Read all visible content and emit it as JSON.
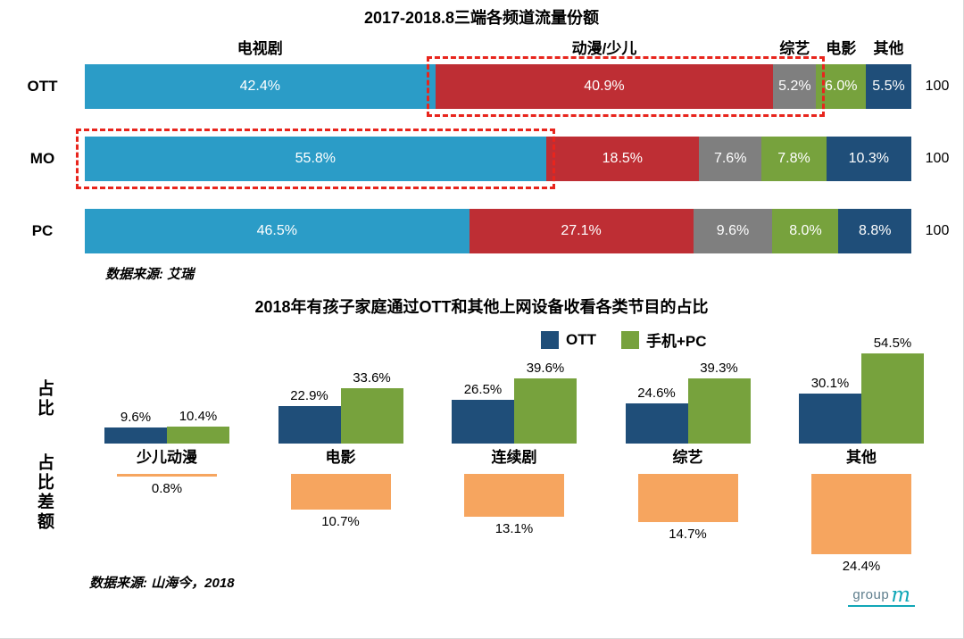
{
  "chart_data": [
    {
      "type": "bar",
      "variant": "horizontal-stacked",
      "title": "2017-2018.8三端各频道流量份额",
      "rows": [
        "OTT",
        "MO",
        "PC"
      ],
      "row_total_label": "100",
      "xlim": [
        0,
        100
      ],
      "value_suffix": "%",
      "series": [
        {
          "name": "电视剧",
          "color": "#2b9cc7",
          "values": [
            42.4,
            55.8,
            46.5
          ]
        },
        {
          "name": "动漫/少儿",
          "color": "#be2e34",
          "values": [
            40.9,
            18.5,
            27.1
          ]
        },
        {
          "name": "综艺",
          "color": "#7f7f7f",
          "values": [
            5.2,
            7.6,
            9.6
          ]
        },
        {
          "name": "电影",
          "color": "#77a23d",
          "values": [
            6.0,
            7.8,
            8.0
          ]
        },
        {
          "name": "其他",
          "color": "#1f4e79",
          "values": [
            5.5,
            10.3,
            8.8
          ]
        }
      ],
      "highlight_color": "#e8251d",
      "highlights": [
        {
          "row": "OTT",
          "segments": [
            "动漫/少儿",
            "综艺"
          ],
          "style": "red-dashed-box"
        },
        {
          "row": "MO",
          "segments": [
            "电视剧"
          ],
          "style": "red-dashed-box"
        }
      ],
      "source": "数据来源: 艾瑞"
    },
    {
      "type": "bar",
      "variant": "grouped-with-difference-row",
      "title": "2018年有孩子家庭通过OTT和其他上网设备收看各类节目的占比",
      "categories": [
        "少儿动漫",
        "电影",
        "连续剧",
        "综艺",
        "其他"
      ],
      "series": [
        {
          "name": "OTT",
          "color": "#1f4e79",
          "values": [
            9.6,
            22.9,
            26.5,
            24.6,
            30.1
          ]
        },
        {
          "name": "手机+PC",
          "color": "#77a23d",
          "values": [
            10.4,
            33.6,
            39.6,
            39.3,
            54.5
          ]
        }
      ],
      "difference": {
        "name": "占比差额",
        "color": "#f6a55f",
        "values": [
          0.8,
          10.7,
          13.1,
          14.7,
          24.4
        ]
      },
      "axis_share_label": "占比",
      "axis_diff_label": "占比差额",
      "legend_position": "top-right",
      "ylim": [
        0,
        60
      ],
      "value_suffix": "%",
      "source": "数据来源: 山海今，2018"
    }
  ],
  "logo": {
    "text": "group",
    "script_letter": "m",
    "accent": "#11a7b7",
    "text_color": "#5e7e8d"
  }
}
